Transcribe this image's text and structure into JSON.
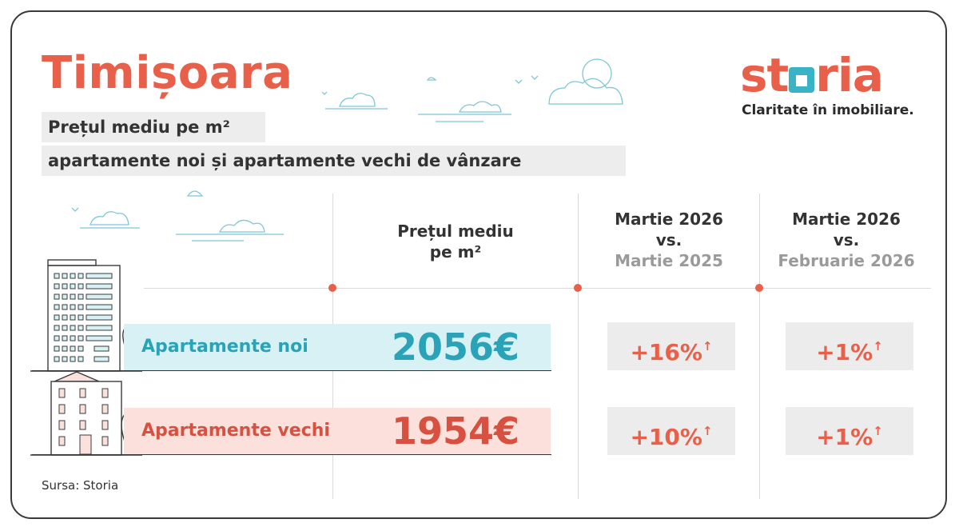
{
  "city": "Timișoara",
  "subtitle_line1": "Prețul mediu pe m²",
  "subtitle_line2": "apartamente noi și apartamente vechi de vânzare",
  "brand": {
    "name_part1": "st",
    "name_part2": "ria",
    "tagline": "Claritate în imobiliare.",
    "accent_color": "#e8604a",
    "teal_color": "#3ab3c6"
  },
  "columns": {
    "price_header_line1": "Prețul mediu",
    "price_header_line2": "pe m²",
    "yoy_line1": "Martie 2026",
    "yoy_line2": "vs.",
    "yoy_line3": "Martie 2025",
    "mom_line1": "Martie 2026",
    "mom_line2": "vs.",
    "mom_line3": "Februarie 2026"
  },
  "rows": [
    {
      "label": "Apartamente noi",
      "price": "2056€",
      "yoy": "+16%",
      "mom": "+1%",
      "color": "#2aa3b8"
    },
    {
      "label": "Apartamente vechi",
      "price": "1954€",
      "yoy": "+10%",
      "mom": "+1%",
      "color": "#d8503f"
    }
  ],
  "arrow": "↑",
  "source": "Sursa: Storia"
}
